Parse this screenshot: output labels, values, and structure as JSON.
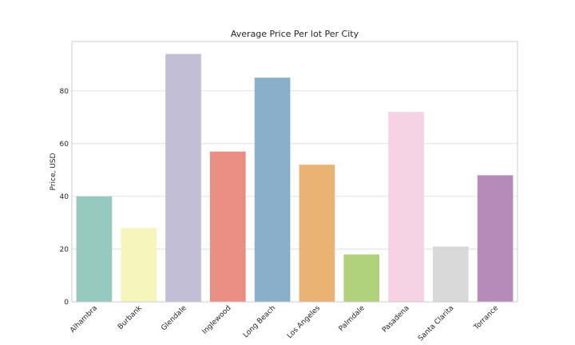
{
  "chart_data": {
    "type": "bar",
    "title": "Average Price Per lot Per City",
    "xlabel": "",
    "ylabel": "Price, USD",
    "categories": [
      "Alhambra",
      "Burbank",
      "Glendale",
      "Inglewood",
      "Long Beach",
      "Los Angeles",
      "Palmdale",
      "Pasadena",
      "Santa Clarita",
      "Torrance"
    ],
    "values": [
      40,
      28,
      94,
      57,
      85,
      52,
      18,
      72,
      21,
      48
    ],
    "colors": [
      "#96cac1",
      "#f6f6bc",
      "#c1bed6",
      "#ea8e83",
      "#8aafca",
      "#eab375",
      "#b1d27b",
      "#f5d3e5",
      "#d9d9d9",
      "#b78bb9"
    ],
    "ylim": [
      0,
      98.7
    ],
    "yticks": [
      0,
      20,
      40,
      60,
      80
    ],
    "grid": true,
    "legend": "none"
  }
}
